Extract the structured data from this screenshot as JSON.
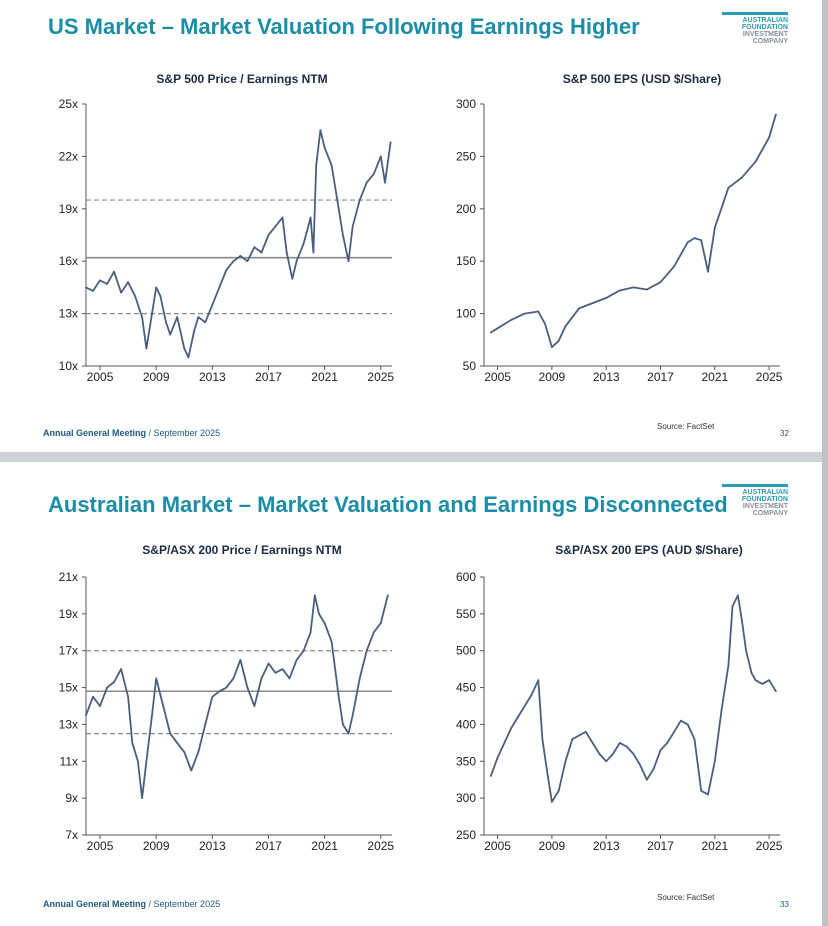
{
  "slides": [
    {
      "title": "US Market – Market Valuation Following Earnings Higher",
      "logo_lines": [
        "AUSTRALIAN",
        "FOUNDATION",
        "INVESTMENT",
        "COMPANY"
      ],
      "footer_bold": "Annual General Meeting",
      "footer_rest": " / September 2025",
      "source": "Source: FactSet",
      "page_number": "32"
    },
    {
      "title": "Australian Market – Market Valuation and Earnings Disconnected",
      "logo_lines": [
        "AUSTRALIAN",
        "FOUNDATION",
        "INVESTMENT",
        "COMPANY"
      ],
      "footer_bold": "Annual General Meeting",
      "footer_rest": " / September 2025",
      "source": "Source: FactSet",
      "page_number": "33"
    }
  ],
  "colors": {
    "title": "#1b8da6",
    "series": "#4a5f7e",
    "reference": "#8a8a8a"
  },
  "chart_data": [
    {
      "type": "line",
      "title": "S&P 500 Price / Earnings NTM",
      "x_ticks": [
        "2005",
        "2009",
        "2013",
        "2017",
        "2021",
        "2025"
      ],
      "y_ticks": [
        "10x",
        "13x",
        "16x",
        "19x",
        "22x",
        "25x"
      ],
      "xlim": [
        2004,
        2025.8
      ],
      "ylim": [
        10,
        25
      ],
      "reference_lines": [
        {
          "value": 16.2,
          "style": "solid"
        },
        {
          "value": 19.5,
          "style": "dashed"
        },
        {
          "value": 13.0,
          "style": "dashed"
        }
      ],
      "series": [
        {
          "name": "P/E NTM",
          "x": [
            2004,
            2004.5,
            2005,
            2005.5,
            2006,
            2006.5,
            2007,
            2007.5,
            2008,
            2008.3,
            2008.7,
            2009,
            2009.3,
            2009.7,
            2010,
            2010.5,
            2011,
            2011.3,
            2011.7,
            2012,
            2012.5,
            2013,
            2013.5,
            2014,
            2014.5,
            2015,
            2015.5,
            2016,
            2016.5,
            2017,
            2017.5,
            2018,
            2018.3,
            2018.7,
            2019,
            2019.5,
            2020,
            2020.2,
            2020.4,
            2020.7,
            2021,
            2021.5,
            2022,
            2022.3,
            2022.7,
            2023,
            2023.5,
            2024,
            2024.5,
            2025,
            2025.3,
            2025.7
          ],
          "values": [
            14.5,
            14.3,
            14.9,
            14.7,
            15.4,
            14.2,
            14.8,
            14.0,
            12.8,
            11.0,
            13.0,
            14.5,
            14.0,
            12.5,
            11.8,
            12.8,
            11.0,
            10.5,
            12.0,
            12.8,
            12.5,
            13.5,
            14.5,
            15.5,
            16.0,
            16.3,
            16.0,
            16.8,
            16.5,
            17.5,
            18.0,
            18.5,
            16.5,
            15.0,
            16.0,
            17.0,
            18.5,
            16.5,
            21.5,
            23.5,
            22.5,
            21.5,
            19.0,
            17.5,
            16.0,
            18.0,
            19.5,
            20.5,
            21.0,
            22.0,
            20.5,
            22.8
          ]
        }
      ]
    },
    {
      "type": "line",
      "title": "S&P 500 EPS (USD $/Share)",
      "x_ticks": [
        "2005",
        "2009",
        "2013",
        "2017",
        "2021",
        "2025"
      ],
      "y_ticks": [
        "50",
        "100",
        "150",
        "200",
        "250",
        "300"
      ],
      "xlim": [
        2004,
        2025.8
      ],
      "ylim": [
        50,
        300
      ],
      "series": [
        {
          "name": "EPS",
          "x": [
            2004.5,
            2005,
            2006,
            2007,
            2008,
            2008.5,
            2009,
            2009.5,
            2010,
            2011,
            2012,
            2013,
            2014,
            2015,
            2016,
            2017,
            2018,
            2019,
            2019.5,
            2020,
            2020.5,
            2021,
            2022,
            2023,
            2024,
            2025,
            2025.5
          ],
          "values": [
            82,
            86,
            94,
            100,
            102,
            90,
            68,
            74,
            88,
            105,
            110,
            115,
            122,
            125,
            123,
            130,
            145,
            168,
            172,
            170,
            140,
            182,
            220,
            230,
            245,
            268,
            290
          ]
        }
      ]
    },
    {
      "type": "line",
      "title": "S&P/ASX 200 Price / Earnings NTM",
      "x_ticks": [
        "2005",
        "2009",
        "2013",
        "2017",
        "2021",
        "2025"
      ],
      "y_ticks": [
        "7x",
        "9x",
        "11x",
        "13x",
        "15x",
        "17x",
        "19x",
        "21x"
      ],
      "xlim": [
        2004,
        2025.8
      ],
      "ylim": [
        7,
        21
      ],
      "reference_lines": [
        {
          "value": 14.8,
          "style": "solid"
        },
        {
          "value": 17.0,
          "style": "dashed"
        },
        {
          "value": 12.5,
          "style": "dashed"
        }
      ],
      "series": [
        {
          "name": "P/E NTM",
          "x": [
            2004,
            2004.5,
            2005,
            2005.5,
            2006,
            2006.5,
            2007,
            2007.3,
            2007.7,
            2008,
            2008.3,
            2008.7,
            2009,
            2009.5,
            2010,
            2010.5,
            2011,
            2011.5,
            2012,
            2012.5,
            2013,
            2013.5,
            2014,
            2014.5,
            2015,
            2015.5,
            2016,
            2016.5,
            2017,
            2017.5,
            2018,
            2018.5,
            2019,
            2019.5,
            2020,
            2020.3,
            2020.6,
            2021,
            2021.5,
            2022,
            2022.3,
            2022.7,
            2023,
            2023.5,
            2024,
            2024.5,
            2025,
            2025.5
          ],
          "values": [
            13.5,
            14.5,
            14.0,
            15.0,
            15.3,
            16.0,
            14.5,
            12.0,
            11.0,
            9.0,
            11.0,
            13.5,
            15.5,
            14.0,
            12.5,
            12.0,
            11.5,
            10.5,
            11.5,
            13.0,
            14.5,
            14.8,
            15.0,
            15.5,
            16.5,
            15.0,
            14.0,
            15.5,
            16.3,
            15.8,
            16.0,
            15.5,
            16.5,
            17.0,
            18.0,
            20.0,
            19.0,
            18.5,
            17.5,
            14.5,
            13.0,
            12.5,
            13.5,
            15.5,
            17.0,
            18.0,
            18.5,
            20.0
          ]
        }
      ]
    },
    {
      "type": "line",
      "title": "S&P/ASX 200 EPS (AUD $/Share)",
      "x_ticks": [
        "2005",
        "2009",
        "2013",
        "2017",
        "2021",
        "2025"
      ],
      "y_ticks": [
        "250",
        "300",
        "350",
        "400",
        "450",
        "500",
        "550",
        "600"
      ],
      "xlim": [
        2004,
        2025.8
      ],
      "ylim": [
        250,
        600
      ],
      "series": [
        {
          "name": "EPS",
          "x": [
            2004.5,
            2005,
            2005.5,
            2006,
            2006.5,
            2007,
            2007.5,
            2008,
            2008.3,
            2008.7,
            2009,
            2009.5,
            2010,
            2010.5,
            2011,
            2011.5,
            2012,
            2012.5,
            2013,
            2013.5,
            2014,
            2014.5,
            2015,
            2015.5,
            2016,
            2016.5,
            2017,
            2017.5,
            2018,
            2018.5,
            2019,
            2019.5,
            2020,
            2020.5,
            2021,
            2021.5,
            2022,
            2022.3,
            2022.7,
            2023,
            2023.3,
            2023.7,
            2024,
            2024.5,
            2025,
            2025.5
          ],
          "values": [
            330,
            355,
            375,
            395,
            410,
            425,
            440,
            460,
            380,
            330,
            295,
            310,
            350,
            380,
            385,
            390,
            375,
            360,
            350,
            360,
            375,
            370,
            360,
            345,
            325,
            340,
            365,
            375,
            390,
            405,
            400,
            380,
            310,
            305,
            350,
            420,
            480,
            560,
            575,
            540,
            500,
            470,
            460,
            455,
            460,
            445
          ]
        }
      ]
    }
  ]
}
